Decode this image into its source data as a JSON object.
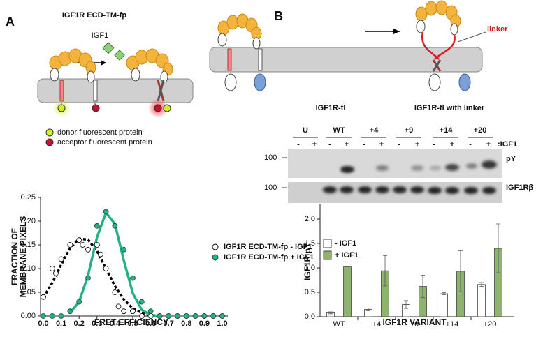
{
  "panel_labels": [
    "A",
    "B"
  ],
  "diagram_a": {
    "title": "IGF1R ECD-TM-fp",
    "ligand": "IGF1",
    "legend": [
      "donor fluorescent protein",
      "acceptor fluorescent protein"
    ]
  },
  "diagram_b": {
    "linker": "linker",
    "labels": [
      "IGF1R-fl",
      "IGF1R-fl with linker"
    ]
  },
  "blot": {
    "groups": [
      "U",
      "WT",
      "+4",
      "+9",
      "+14",
      "+20"
    ],
    "lane_signs": [
      "-",
      "+",
      "-",
      "+",
      "-",
      "+",
      "-",
      "+",
      "-",
      "+",
      "-",
      "+"
    ],
    "treatment": ":IGF1",
    "rows": [
      {
        "marker": "100",
        "label": "pY"
      },
      {
        "marker": "100",
        "label": "IGF1Rβ"
      }
    ]
  },
  "chart_data": [
    {
      "type": "scatter",
      "xlabel": "FRET EFFICIENCY",
      "ylabel": [
        "FRACTION OF",
        "MEMBRANE PIXELS"
      ],
      "xlim": [
        0,
        1
      ],
      "ylim": [
        0,
        0.25
      ],
      "xticks": [
        {
          "value": 0,
          "label": "0.0"
        },
        0.1,
        0.2,
        0.3,
        0.4,
        0.5,
        0.6,
        0.7,
        0.8,
        0.9,
        {
          "value": 1,
          "label": "1.0"
        }
      ],
      "yticks": [
        {
          "value": 0,
          "label": "0.00"
        },
        {
          "value": 0.05,
          "label": "0.05"
        },
        {
          "value": 0.1,
          "label": "0.10"
        },
        {
          "value": 0.15,
          "label": "0.15"
        },
        {
          "value": 0.2,
          "label": "0.20"
        },
        {
          "value": 0.25,
          "label": "0.25"
        }
      ],
      "series": [
        {
          "name": "IGF1R ECD-TM-fp  - IGF1",
          "color": "#000000",
          "marker": "open",
          "x": [
            0.0,
            0.05,
            0.07,
            0.1,
            0.15,
            0.2,
            0.22,
            0.25,
            0.3,
            0.32,
            0.35,
            0.4,
            0.42,
            0.45,
            0.5,
            0.55,
            0.6,
            0.65,
            0.7,
            0.75,
            0.8,
            0.85,
            0.9,
            0.95,
            1.0
          ],
          "values": [
            0.04,
            0.1,
            0.09,
            0.12,
            0.15,
            0.16,
            0.15,
            0.14,
            0.15,
            0.13,
            0.1,
            0.05,
            0.02,
            0.01,
            0.01,
            0,
            0,
            0,
            0,
            0,
            0,
            0,
            0,
            0,
            0
          ],
          "fit": {
            "dashed": true,
            "x": [
              0,
              0.05,
              0.1,
              0.15,
              0.2,
              0.25,
              0.3,
              0.35,
              0.4,
              0.45,
              0.5,
              0.55,
              0.6
            ],
            "values": [
              0.039,
              0.07,
              0.108,
              0.143,
              0.163,
              0.161,
              0.137,
              0.1,
              0.063,
              0.035,
              0.016,
              0.007,
              0.002
            ]
          }
        },
        {
          "name": "IGF1R ECD-TM-fp + IGF1",
          "color": "#26b085",
          "marker": "filled",
          "x": [
            0.0,
            0.05,
            0.1,
            0.15,
            0.2,
            0.25,
            0.3,
            0.35,
            0.4,
            0.45,
            0.5,
            0.55,
            0.6,
            0.65,
            0.7,
            0.75,
            0.8,
            0.85,
            0.9,
            0.95,
            1.0
          ],
          "values": [
            0,
            0,
            0,
            0.01,
            0.03,
            0.08,
            0.19,
            0.22,
            0.19,
            0.14,
            0.08,
            0.03,
            0.01,
            0,
            0,
            0,
            0,
            0,
            0,
            0,
            0
          ],
          "fit": {
            "dashed": false,
            "x": [
              0.15,
              0.2,
              0.25,
              0.3,
              0.35,
              0.4,
              0.45,
              0.5,
              0.55,
              0.6,
              0.65
            ],
            "values": [
              0.007,
              0.03,
              0.086,
              0.166,
              0.218,
              0.194,
              0.117,
              0.048,
              0.013,
              0.002,
              0
            ]
          }
        }
      ]
    },
    {
      "type": "bar",
      "xlabel": "IGF1R VARIANT",
      "ylabel": [
        "IGF1R pY"
      ],
      "categories": [
        "WT",
        "+4",
        "+9",
        "+14",
        "+20"
      ],
      "ylim": [
        0,
        2.3
      ],
      "yticks": [
        {
          "value": 0,
          "label": "0.0"
        },
        0.5,
        {
          "value": 1,
          "label": "1.0"
        },
        1.5,
        {
          "value": 2,
          "label": "2.0"
        }
      ],
      "series": [
        {
          "name": "- IGF1",
          "color": "#ffffff",
          "values": [
            0.08,
            0.15,
            0.25,
            0.47,
            0.66
          ],
          "errors": [
            0.02,
            0.03,
            0.08,
            0.02,
            0.04
          ]
        },
        {
          "name": "+ IGF1",
          "color": "#8db46d",
          "values": [
            1.02,
            0.94,
            0.62,
            0.93,
            1.4
          ],
          "errors": [
            0,
            0.31,
            0.23,
            0.42,
            0.5
          ]
        }
      ]
    }
  ]
}
